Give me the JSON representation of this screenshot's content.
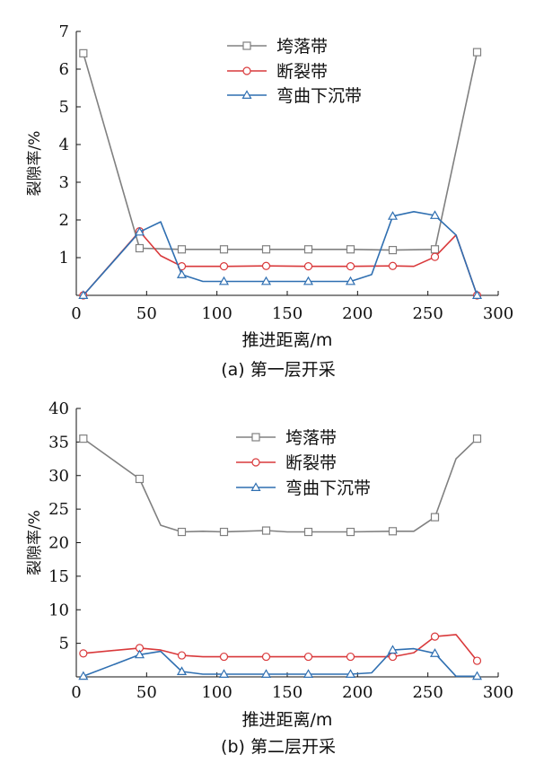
{
  "chart_data": [
    {
      "type": "line",
      "caption": "(a) 第一层开采",
      "xlabel": "推进距离/m",
      "ylabel": "裂隙率/%",
      "xlim": [
        0,
        300
      ],
      "ylim": [
        0,
        7
      ],
      "xticks": [
        0,
        50,
        100,
        150,
        200,
        250,
        300
      ],
      "yticks": [
        1,
        2,
        3,
        4,
        5,
        6,
        7
      ],
      "grid": false,
      "legend": "top-center",
      "series": [
        {
          "name": "垮落带",
          "color": "#808080",
          "marker": "square",
          "points": [
            [
              5,
              6.42
            ],
            [
              45,
              1.25
            ],
            [
              75,
              1.22
            ],
            [
              105,
              1.22
            ],
            [
              135,
              1.22
            ],
            [
              165,
              1.22
            ],
            [
              195,
              1.22
            ],
            [
              225,
              1.2
            ],
            [
              255,
              1.22
            ],
            [
              285,
              6.45
            ]
          ],
          "markers": [
            [
              5,
              6.42
            ],
            [
              45,
              1.25
            ],
            [
              75,
              1.22
            ],
            [
              105,
              1.22
            ],
            [
              135,
              1.22
            ],
            [
              165,
              1.22
            ],
            [
              195,
              1.22
            ],
            [
              225,
              1.2
            ],
            [
              255,
              1.22
            ],
            [
              285,
              6.45
            ]
          ]
        },
        {
          "name": "断裂带",
          "color": "#d9393b",
          "marker": "circle",
          "points": [
            [
              5,
              0.0
            ],
            [
              45,
              1.7
            ],
            [
              60,
              1.05
            ],
            [
              75,
              0.77
            ],
            [
              105,
              0.77
            ],
            [
              135,
              0.78
            ],
            [
              165,
              0.77
            ],
            [
              195,
              0.77
            ],
            [
              225,
              0.78
            ],
            [
              240,
              0.77
            ],
            [
              255,
              1.02
            ],
            [
              270,
              1.6
            ],
            [
              285,
              0.0
            ]
          ],
          "markers": [
            [
              5,
              0.0
            ],
            [
              45,
              1.7
            ],
            [
              75,
              0.77
            ],
            [
              105,
              0.77
            ],
            [
              135,
              0.78
            ],
            [
              165,
              0.77
            ],
            [
              195,
              0.77
            ],
            [
              225,
              0.78
            ],
            [
              255,
              1.02
            ],
            [
              285,
              0.0
            ]
          ]
        },
        {
          "name": "弯曲下沉带",
          "color": "#2f6fb1",
          "marker": "triangle",
          "points": [
            [
              5,
              0.0
            ],
            [
              45,
              1.68
            ],
            [
              60,
              1.95
            ],
            [
              75,
              0.55
            ],
            [
              90,
              0.37
            ],
            [
              105,
              0.37
            ],
            [
              135,
              0.37
            ],
            [
              165,
              0.37
            ],
            [
              195,
              0.37
            ],
            [
              210,
              0.55
            ],
            [
              225,
              2.1
            ],
            [
              240,
              2.22
            ],
            [
              255,
              2.12
            ],
            [
              270,
              1.6
            ],
            [
              285,
              0.0
            ]
          ],
          "markers": [
            [
              5,
              0.0
            ],
            [
              45,
              1.68
            ],
            [
              75,
              0.55
            ],
            [
              105,
              0.37
            ],
            [
              135,
              0.37
            ],
            [
              165,
              0.37
            ],
            [
              195,
              0.37
            ],
            [
              225,
              2.1
            ],
            [
              255,
              2.12
            ],
            [
              285,
              0.0
            ]
          ]
        }
      ]
    },
    {
      "type": "line",
      "caption": "(b) 第二层开采",
      "xlabel": "推进距离/m",
      "ylabel": "裂隙率/%",
      "xlim": [
        0,
        300
      ],
      "ylim": [
        0,
        40
      ],
      "xticks": [
        0,
        50,
        100,
        150,
        200,
        250,
        300
      ],
      "yticks": [
        5,
        10,
        15,
        20,
        25,
        30,
        35,
        40
      ],
      "grid": false,
      "legend": "top-center",
      "series": [
        {
          "name": "垮落带",
          "color": "#808080",
          "marker": "square",
          "points": [
            [
              5,
              35.5
            ],
            [
              45,
              29.5
            ],
            [
              60,
              22.6
            ],
            [
              75,
              21.6
            ],
            [
              90,
              21.7
            ],
            [
              105,
              21.6
            ],
            [
              135,
              21.8
            ],
            [
              150,
              21.6
            ],
            [
              165,
              21.6
            ],
            [
              195,
              21.6
            ],
            [
              225,
              21.7
            ],
            [
              240,
              21.7
            ],
            [
              255,
              23.8
            ],
            [
              270,
              32.5
            ],
            [
              285,
              35.5
            ]
          ],
          "markers": [
            [
              5,
              35.5
            ],
            [
              45,
              29.5
            ],
            [
              75,
              21.6
            ],
            [
              105,
              21.6
            ],
            [
              135,
              21.8
            ],
            [
              165,
              21.6
            ],
            [
              195,
              21.6
            ],
            [
              225,
              21.7
            ],
            [
              255,
              23.8
            ],
            [
              285,
              35.5
            ]
          ]
        },
        {
          "name": "断裂带",
          "color": "#d9393b",
          "marker": "circle",
          "points": [
            [
              5,
              3.5
            ],
            [
              45,
              4.3
            ],
            [
              60,
              4.0
            ],
            [
              75,
              3.2
            ],
            [
              90,
              3.0
            ],
            [
              105,
              3.0
            ],
            [
              135,
              3.0
            ],
            [
              165,
              3.0
            ],
            [
              195,
              3.0
            ],
            [
              225,
              3.0
            ],
            [
              240,
              3.6
            ],
            [
              255,
              6.0
            ],
            [
              270,
              6.3
            ],
            [
              285,
              2.4
            ]
          ],
          "markers": [
            [
              5,
              3.5
            ],
            [
              45,
              4.3
            ],
            [
              75,
              3.2
            ],
            [
              105,
              3.0
            ],
            [
              135,
              3.0
            ],
            [
              165,
              3.0
            ],
            [
              195,
              3.0
            ],
            [
              225,
              3.0
            ],
            [
              255,
              6.0
            ],
            [
              285,
              2.4
            ]
          ]
        },
        {
          "name": "弯曲下沉带",
          "color": "#2f6fb1",
          "marker": "triangle",
          "points": [
            [
              5,
              0.1
            ],
            [
              45,
              3.3
            ],
            [
              60,
              3.8
            ],
            [
              75,
              0.8
            ],
            [
              90,
              0.4
            ],
            [
              105,
              0.4
            ],
            [
              135,
              0.4
            ],
            [
              165,
              0.4
            ],
            [
              195,
              0.4
            ],
            [
              210,
              0.6
            ],
            [
              225,
              4.0
            ],
            [
              240,
              4.2
            ],
            [
              255,
              3.5
            ],
            [
              270,
              0.1
            ],
            [
              285,
              0.1
            ]
          ],
          "markers": [
            [
              5,
              0.1
            ],
            [
              45,
              3.3
            ],
            [
              75,
              0.8
            ],
            [
              105,
              0.4
            ],
            [
              135,
              0.4
            ],
            [
              165,
              0.4
            ],
            [
              195,
              0.4
            ],
            [
              225,
              4.0
            ],
            [
              255,
              3.5
            ],
            [
              285,
              0.1
            ]
          ]
        }
      ]
    }
  ]
}
